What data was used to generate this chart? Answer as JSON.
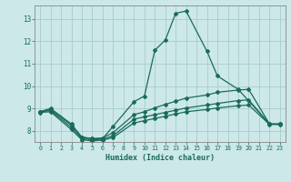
{
  "xlabel": "Humidex (Indice chaleur)",
  "xlim": [
    -0.5,
    23.5
  ],
  "ylim": [
    7.5,
    13.6
  ],
  "yticks": [
    8,
    9,
    10,
    11,
    12,
    13
  ],
  "xticks": [
    0,
    1,
    2,
    3,
    4,
    5,
    6,
    7,
    8,
    9,
    10,
    11,
    12,
    13,
    14,
    15,
    16,
    17,
    18,
    19,
    20,
    21,
    22,
    23
  ],
  "bg_color": "#cce8e8",
  "grid_color": "#aacccc",
  "line_color": "#1a6b5a",
  "line1_x": [
    0,
    1,
    3,
    4,
    5,
    6,
    7,
    9,
    10,
    11,
    12,
    13,
    14,
    16,
    17,
    19,
    22,
    23
  ],
  "line1_y": [
    8.85,
    9.0,
    8.3,
    7.7,
    7.65,
    7.65,
    8.2,
    9.3,
    9.55,
    11.6,
    12.05,
    13.25,
    13.35,
    11.55,
    10.45,
    9.85,
    8.3,
    8.3
  ],
  "line2_x": [
    0,
    1,
    3,
    4,
    5,
    6,
    7,
    9,
    10,
    11,
    12,
    13,
    14,
    16,
    17,
    19,
    20,
    22,
    23
  ],
  "line2_y": [
    8.85,
    8.95,
    8.25,
    7.72,
    7.65,
    7.68,
    7.92,
    8.72,
    8.85,
    9.02,
    9.18,
    9.32,
    9.46,
    9.6,
    9.72,
    9.82,
    9.85,
    8.3,
    8.3
  ],
  "line3_x": [
    0,
    1,
    3,
    4,
    5,
    6,
    7,
    9,
    10,
    11,
    12,
    13,
    14,
    16,
    17,
    19,
    20,
    22,
    23
  ],
  "line3_y": [
    8.85,
    8.9,
    8.15,
    7.65,
    7.6,
    7.62,
    7.78,
    8.52,
    8.62,
    8.72,
    8.82,
    8.92,
    9.02,
    9.15,
    9.22,
    9.35,
    9.38,
    8.3,
    8.3
  ],
  "line4_x": [
    0,
    1,
    3,
    4,
    5,
    6,
    7,
    9,
    10,
    11,
    12,
    13,
    14,
    16,
    17,
    19,
    20,
    22,
    23
  ],
  "line4_y": [
    8.82,
    8.85,
    8.05,
    7.6,
    7.55,
    7.58,
    7.7,
    8.35,
    8.45,
    8.55,
    8.65,
    8.75,
    8.85,
    8.95,
    9.02,
    9.12,
    9.15,
    8.28,
    8.28
  ]
}
